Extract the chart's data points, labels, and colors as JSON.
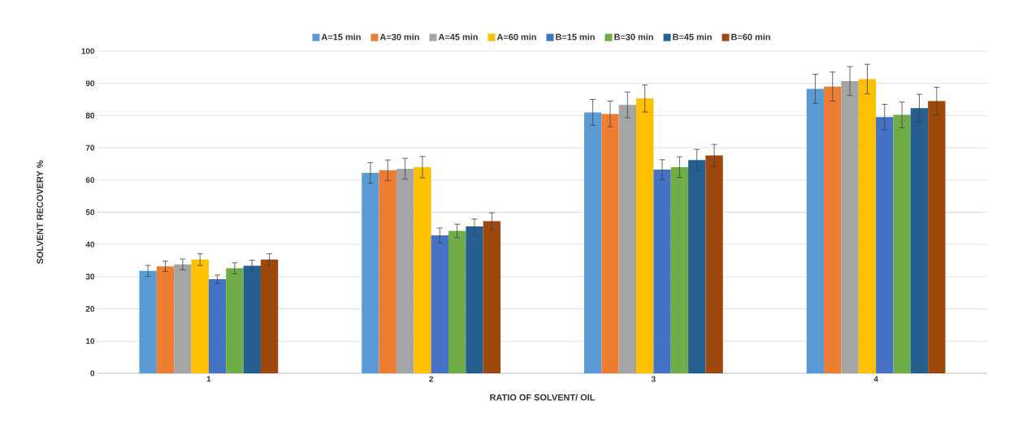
{
  "chart_data": {
    "type": "bar",
    "xlabel": "RATIO OF SOLVENT/ OIL",
    "ylabel": "SOLVENT RECOVERY %",
    "categories": [
      "1",
      "2",
      "3",
      "4"
    ],
    "series": [
      {
        "name": "A=15 min",
        "color": "#5b9bd5",
        "values": [
          31.8,
          62.2,
          81,
          88.3
        ],
        "errors": [
          1.7,
          3.2,
          4,
          4.5
        ]
      },
      {
        "name": "A=30 min",
        "color": "#ed7d31",
        "values": [
          33.2,
          63,
          80.5,
          89
        ],
        "errors": [
          1.6,
          3.2,
          4,
          4.5
        ]
      },
      {
        "name": "A=45 min",
        "color": "#a5a5a5",
        "values": [
          33.8,
          63.5,
          83.3,
          90.7
        ],
        "errors": [
          1.7,
          3.2,
          4,
          4.5
        ]
      },
      {
        "name": "A=60 min",
        "color": "#ffc000",
        "values": [
          35.3,
          64,
          85.3,
          91.3
        ],
        "errors": [
          1.8,
          3.3,
          4.2,
          4.6
        ]
      },
      {
        "name": "B=15 min",
        "color": "#4472c4",
        "values": [
          29.2,
          42.8,
          63.2,
          79.5
        ],
        "errors": [
          1.3,
          2.3,
          3.1,
          4
        ]
      },
      {
        "name": "B=30 min",
        "color": "#70ad47",
        "values": [
          32.6,
          44.2,
          64,
          80.2
        ],
        "errors": [
          1.7,
          2.1,
          3.2,
          4
        ]
      },
      {
        "name": "B=45 min",
        "color": "#255e91",
        "values": [
          33.4,
          45.6,
          66.2,
          82.3
        ],
        "errors": [
          1.7,
          2.3,
          3.3,
          4.3
        ]
      },
      {
        "name": "B=60 min",
        "color": "#9e480e",
        "values": [
          35.3,
          47.2,
          67.6,
          84.5
        ],
        "errors": [
          1.8,
          2.6,
          3.4,
          4.3
        ]
      }
    ],
    "ylim": [
      0,
      100
    ],
    "yticks": [
      0,
      10,
      20,
      30,
      40,
      50,
      60,
      70,
      80,
      90,
      100
    ],
    "grid": "y",
    "legend": "top"
  }
}
